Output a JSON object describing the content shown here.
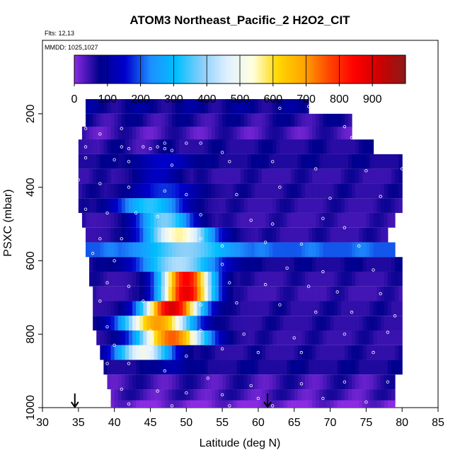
{
  "chart_data": {
    "type": "heatmap",
    "title": "ATOM3 Northeast_Pacific_2 H2O2_CIT",
    "flights_label": "Flts: 12,13",
    "mmdd_label": "MMDD: 1025,1027",
    "xlabel": "Latitude (deg N)",
    "ylabel": "PSXC (mbar)",
    "xlim": [
      30,
      85
    ],
    "ylim": [
      1000,
      0
    ],
    "x_ticks": [
      30,
      35,
      40,
      45,
      50,
      55,
      60,
      65,
      70,
      75,
      80,
      85
    ],
    "y_ticks": [
      200,
      400,
      600,
      800,
      1000
    ],
    "x_tick_labels": [
      "30",
      "35",
      "40",
      "45",
      "50",
      "55",
      "60",
      "65",
      "70",
      "75",
      "80",
      "85"
    ],
    "y_tick_labels": [
      "200",
      "400",
      "600",
      "800",
      "1000"
    ],
    "colorbar": {
      "range": [
        0,
        1000
      ],
      "ticks": [
        0,
        100,
        200,
        300,
        400,
        500,
        600,
        700,
        800,
        900
      ],
      "tick_labels": [
        "0",
        "100",
        "200",
        "300",
        "400",
        "500",
        "600",
        "700",
        "800",
        "900"
      ],
      "colors": [
        "#8b2be2",
        "#00008b",
        "#0000cd",
        "#1e90ff",
        "#00bfff",
        "#87cefa",
        "#e0f0ff",
        "#ffffe0",
        "#ffd700",
        "#ffa500",
        "#ff4500",
        "#ff0000",
        "#cd0000",
        "#8b1a1a"
      ]
    },
    "rows": [
      {
        "p": 180,
        "lat": [
          36,
          67
        ],
        "bg": 80,
        "hi": []
      },
      {
        "p": 220,
        "lat": [
          36,
          73
        ],
        "bg": 60,
        "hi": []
      },
      {
        "p": 255,
        "lat": [
          35.5,
          73
        ],
        "bg": 40,
        "hi": []
      },
      {
        "p": 290,
        "lat": [
          35,
          76
        ],
        "bg": 55,
        "hi": [
          {
            "c": 42,
            "w": 7,
            "v": 30
          }
        ]
      },
      {
        "p": 330,
        "lat": [
          35,
          80
        ],
        "bg": 60,
        "hi": [
          {
            "c": 47,
            "w": 5,
            "v": 150
          }
        ]
      },
      {
        "p": 370,
        "lat": [
          35,
          80
        ],
        "bg": 45,
        "hi": [
          {
            "c": 46,
            "w": 4,
            "v": 140
          }
        ]
      },
      {
        "p": 410,
        "lat": [
          35,
          80
        ],
        "bg": 50,
        "hi": [
          {
            "c": 47,
            "w": 6,
            "v": 180
          }
        ]
      },
      {
        "p": 450,
        "lat": [
          35,
          80
        ],
        "bg": 45,
        "hi": [
          {
            "c": 45,
            "w": 6,
            "v": 330
          }
        ]
      },
      {
        "p": 490,
        "lat": [
          35.5,
          79
        ],
        "bg": 40,
        "hi": [
          {
            "c": 47,
            "w": 5,
            "v": 380
          }
        ]
      },
      {
        "p": 530,
        "lat": [
          36,
          78
        ],
        "bg": 45,
        "hi": [
          {
            "c": 49,
            "w": 6,
            "v": 560
          }
        ]
      },
      {
        "p": 570,
        "lat": [
          36,
          79
        ],
        "bg": 200,
        "hi": [
          {
            "c": 50,
            "w": 7,
            "v": 390
          }
        ]
      },
      {
        "p": 610,
        "lat": [
          36.5,
          80
        ],
        "bg": 60,
        "hi": [
          {
            "c": 49,
            "w": 7,
            "v": 420
          }
        ]
      },
      {
        "p": 650,
        "lat": [
          36.5,
          80
        ],
        "bg": 45,
        "hi": [
          {
            "c": 50,
            "w": 4.5,
            "v": 850
          }
        ]
      },
      {
        "p": 690,
        "lat": [
          37,
          80
        ],
        "bg": 40,
        "hi": [
          {
            "c": 50,
            "w": 4.5,
            "v": 880
          }
        ]
      },
      {
        "p": 730,
        "lat": [
          37,
          80
        ],
        "bg": 50,
        "hi": [
          {
            "c": 48,
            "w": 5,
            "v": 900
          }
        ]
      },
      {
        "p": 770,
        "lat": [
          37,
          80
        ],
        "bg": 50,
        "hi": [
          {
            "c": 46,
            "w": 6,
            "v": 700
          }
        ]
      },
      {
        "p": 810,
        "lat": [
          37.5,
          80
        ],
        "bg": 45,
        "hi": [
          {
            "c": 48,
            "w": 6,
            "v": 750
          }
        ]
      },
      {
        "p": 850,
        "lat": [
          38,
          80
        ],
        "bg": 50,
        "hi": [
          {
            "c": 44,
            "w": 5,
            "v": 500
          }
        ]
      },
      {
        "p": 890,
        "lat": [
          38.5,
          80
        ],
        "bg": 60,
        "hi": [
          {
            "c": 48,
            "w": 3,
            "v": 120
          }
        ]
      },
      {
        "p": 930,
        "lat": [
          39,
          79
        ],
        "bg": 45,
        "hi": []
      },
      {
        "p": 970,
        "lat": [
          39.5,
          79
        ],
        "bg": 40,
        "hi": []
      },
      {
        "p": 1000,
        "lat": [
          39.5,
          79
        ],
        "bg": 10,
        "hi": []
      }
    ],
    "samples": [
      [
        67,
        180
      ],
      [
        63,
        185
      ],
      [
        72,
        235
      ],
      [
        36,
        240
      ],
      [
        41,
        240
      ],
      [
        38,
        255
      ],
      [
        73,
        265
      ],
      [
        47,
        280
      ],
      [
        50,
        280
      ],
      [
        52,
        280
      ],
      [
        36,
        290
      ],
      [
        41,
        290
      ],
      [
        42,
        295
      ],
      [
        44,
        290
      ],
      [
        45,
        295
      ],
      [
        46,
        290
      ],
      [
        47,
        295
      ],
      [
        48,
        300
      ],
      [
        55,
        305
      ],
      [
        36,
        320
      ],
      [
        40,
        325
      ],
      [
        42,
        330
      ],
      [
        48,
        340
      ],
      [
        56,
        330
      ],
      [
        62,
        330
      ],
      [
        68,
        350
      ],
      [
        75,
        355
      ],
      [
        80,
        350
      ],
      [
        35,
        380
      ],
      [
        38,
        390
      ],
      [
        42,
        400
      ],
      [
        47,
        410
      ],
      [
        50,
        420
      ],
      [
        57,
        420
      ],
      [
        63,
        400
      ],
      [
        70,
        430
      ],
      [
        77,
        425
      ],
      [
        36,
        460
      ],
      [
        39,
        470
      ],
      [
        43,
        470
      ],
      [
        46,
        480
      ],
      [
        52,
        475
      ],
      [
        59,
        490
      ],
      [
        62,
        500
      ],
      [
        69,
        485
      ],
      [
        72,
        510
      ],
      [
        38,
        540
      ],
      [
        41,
        540
      ],
      [
        52,
        540
      ],
      [
        55,
        560
      ],
      [
        61,
        550
      ],
      [
        66,
        555
      ],
      [
        74,
        560
      ],
      [
        37,
        580
      ],
      [
        40,
        600
      ],
      [
        55,
        610
      ],
      [
        64,
        620
      ],
      [
        69,
        630
      ],
      [
        76,
        625
      ],
      [
        39,
        660
      ],
      [
        42,
        670
      ],
      [
        56,
        660
      ],
      [
        61,
        665
      ],
      [
        67,
        670
      ],
      [
        71,
        685
      ],
      [
        77,
        690
      ],
      [
        38,
        710
      ],
      [
        44,
        710
      ],
      [
        52,
        720
      ],
      [
        57,
        715
      ],
      [
        63,
        720
      ],
      [
        68,
        740
      ],
      [
        73,
        740
      ],
      [
        79,
        750
      ],
      [
        39,
        780
      ],
      [
        45,
        790
      ],
      [
        52,
        790
      ],
      [
        58,
        800
      ],
      [
        65,
        810
      ],
      [
        72,
        800
      ],
      [
        78,
        795
      ],
      [
        40,
        830
      ],
      [
        45,
        840
      ],
      [
        50,
        860
      ],
      [
        55,
        840
      ],
      [
        60,
        850
      ],
      [
        66,
        850
      ],
      [
        76,
        850
      ],
      [
        39,
        880
      ],
      [
        42,
        880
      ],
      [
        47,
        900
      ],
      [
        53,
        920
      ],
      [
        59,
        940
      ],
      [
        66,
        935
      ],
      [
        72,
        930
      ],
      [
        78,
        930
      ],
      [
        41,
        950
      ],
      [
        46,
        955
      ],
      [
        50,
        960
      ],
      [
        55,
        965
      ],
      [
        60,
        975
      ],
      [
        69,
        975
      ],
      [
        75,
        985
      ],
      [
        42,
        990
      ],
      [
        48,
        995
      ],
      [
        56,
        995
      ],
      [
        62,
        995
      ]
    ],
    "arrows": [
      34.5,
      61.3
    ]
  }
}
